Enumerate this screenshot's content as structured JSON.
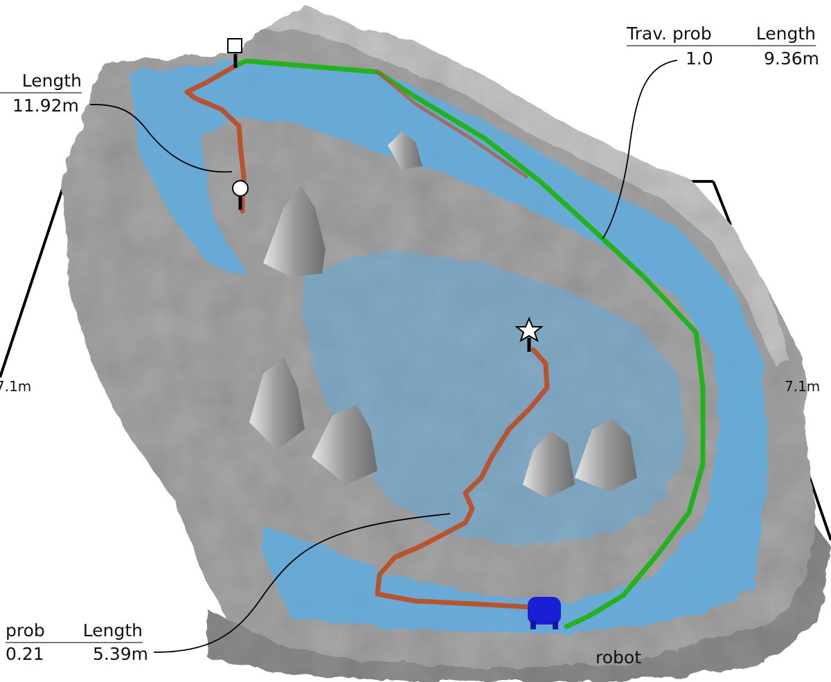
{
  "annotations": {
    "top_right": {
      "header_prob": "Trav. prob",
      "header_len": "Length",
      "prob": "1.0",
      "length": "9.36m"
    },
    "top_left": {
      "header_len": "Length",
      "length": "11.92m"
    },
    "bottom_left": {
      "header_prob": "prob",
      "header_len": "Length",
      "prob": "0.21",
      "length": "5.39m"
    }
  },
  "dimensions": {
    "left": "7.1m",
    "right": "7.1m"
  },
  "robot_label": "robot",
  "colors": {
    "terrain": "#a9a9a9",
    "terrain_light": "#d4d4d4",
    "traversable": "#5aaee6",
    "path_red": "#b9532f",
    "path_green": "#22b21c",
    "robot": "#1a1fd6"
  },
  "markers": [
    "square-goal-icon",
    "circle-goal-icon",
    "star-goal-icon",
    "robot-icon"
  ]
}
